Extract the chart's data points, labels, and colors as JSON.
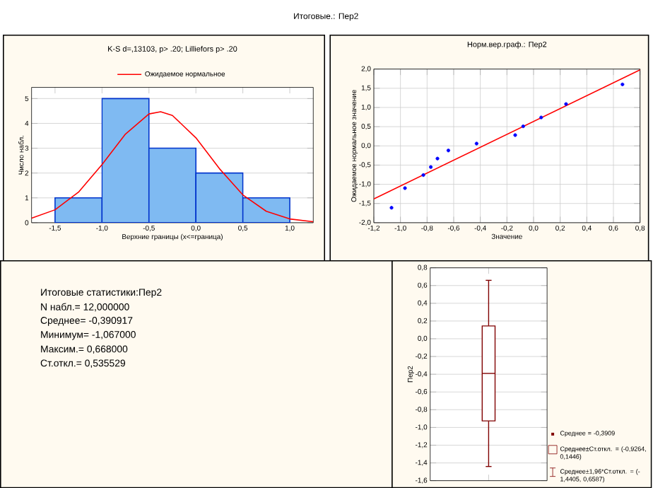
{
  "chart_data": [
    {
      "type": "histogram",
      "title": "Итоговые.: Пер2",
      "subtitle": "K-S d=,13103, p> .20; Lilliefors p> .20",
      "xlabel": "Верхние границы (x<=граница)",
      "ylabel": "Число набл.",
      "series": [
        {
          "type": "histogram",
          "bins": [
            -1.5,
            -1.0,
            -0.5,
            0.0,
            0.5,
            1.0
          ],
          "values": [
            1,
            5,
            3,
            2,
            1
          ],
          "color": "#7fbaf2"
        },
        {
          "type": "line",
          "name": "Ожидаемое нормальное",
          "color": "#ff0000",
          "x": [
            -1.75,
            -1.5,
            -1.25,
            -1.0,
            -0.75,
            -0.5,
            -0.375,
            -0.25,
            0.0,
            0.25,
            0.5,
            0.75,
            1.0,
            1.25
          ],
          "values": [
            0.18,
            0.52,
            1.23,
            2.34,
            3.57,
            4.38,
            4.47,
            4.32,
            3.42,
            2.18,
            1.12,
            0.46,
            0.15,
            0.04
          ]
        }
      ],
      "xlim": [
        -1.75,
        1.25
      ],
      "ylim": [
        0,
        5.45
      ],
      "xticks": [
        {
          "value": -1.5,
          "label": "-1,5"
        },
        {
          "value": -1.0,
          "label": "-1,0"
        },
        {
          "value": -0.5,
          "label": "-0,5"
        },
        {
          "value": 0.0,
          "label": "0,0"
        },
        {
          "value": 0.5,
          "label": "0,5"
        },
        {
          "value": 1.0,
          "label": "1,0"
        }
      ],
      "yticks": [
        0,
        1,
        2,
        3,
        4,
        5
      ],
      "grid": "y",
      "legend": "top"
    },
    {
      "type": "scatter",
      "title": "Норм.вер.граф.: Пер2",
      "xlabel": "Значение",
      "ylabel": "Ожидаемое нормальное значение",
      "series": [
        {
          "type": "scatter",
          "marker": "circle",
          "color": "#0000ff",
          "x": [
            -1.067,
            -0.966,
            -0.828,
            -0.772,
            -0.722,
            -0.64,
            -0.428,
            -0.138,
            -0.078,
            0.057,
            0.244,
            0.668
          ],
          "values": [
            -1.61,
            -1.1,
            -0.76,
            -0.55,
            -0.33,
            -0.12,
            0.06,
            0.28,
            0.51,
            0.74,
            1.09,
            1.6
          ]
        },
        {
          "type": "line",
          "marker": "none",
          "color": "#ff0000",
          "x": [
            -1.2,
            0.8
          ],
          "values": [
            -1.38,
            1.98
          ]
        }
      ],
      "xlim": [
        -1.2,
        0.8
      ],
      "ylim": [
        -2.0,
        2.0
      ],
      "xticks": [
        {
          "value": -1.2,
          "label": "-1,2"
        },
        {
          "value": -1.0,
          "label": "-1,0"
        },
        {
          "value": -0.8,
          "label": "-0,8"
        },
        {
          "value": -0.6,
          "label": "-0,6"
        },
        {
          "value": -0.4,
          "label": "-0,4"
        },
        {
          "value": -0.2,
          "label": "-0,2"
        },
        {
          "value": 0.0,
          "label": "0,0"
        },
        {
          "value": 0.2,
          "label": "0,2"
        },
        {
          "value": 0.4,
          "label": "0,4"
        },
        {
          "value": 0.6,
          "label": "0,6"
        },
        {
          "value": 0.8,
          "label": "0,8"
        }
      ],
      "yticks": [
        {
          "value": -2.0,
          "label": "-2,0"
        },
        {
          "value": -1.5,
          "label": "-1,5"
        },
        {
          "value": -1.0,
          "label": "-1,0"
        },
        {
          "value": -0.5,
          "label": "-0,5"
        },
        {
          "value": 0.0,
          "label": "0,0"
        },
        {
          "value": 0.5,
          "label": "0,5"
        },
        {
          "value": 1.0,
          "label": "1,0"
        },
        {
          "value": 1.5,
          "label": "1,5"
        },
        {
          "value": 2.0,
          "label": "2,0"
        }
      ],
      "grid": true
    },
    {
      "type": "other",
      "title": "Итоговые статистики:Пер2",
      "annotations": [
        "N набл.= 12,000000",
        "Среднее= -0,390917",
        "Минимум= -1,067000",
        "Максим.= 0,668000",
        "Ст.откл.= 0,535529"
      ]
    },
    {
      "type": "box",
      "ylabel": "Пер2",
      "categories": [
        null
      ],
      "color": "#800000",
      "boxes": [
        {
          "low": -1.4405,
          "q1": -0.9264,
          "median": -0.3909,
          "q3": 0.1446,
          "high": 0.6587
        }
      ],
      "ylim": [
        -1.6,
        0.8
      ],
      "yticks": [
        {
          "value": -1.6,
          "label": "-1,6"
        },
        {
          "value": -1.4,
          "label": "-1,4"
        },
        {
          "value": -1.2,
          "label": "-1,2"
        },
        {
          "value": -1.0,
          "label": "-1,0"
        },
        {
          "value": -0.8,
          "label": "-0,8"
        },
        {
          "value": -0.6,
          "label": "-0,6"
        },
        {
          "value": -0.4,
          "label": "-0,4"
        },
        {
          "value": -0.2,
          "label": "-0,2"
        },
        {
          "value": 0.0,
          "label": "0,0"
        },
        {
          "value": 0.2,
          "label": "0,2"
        },
        {
          "value": 0.4,
          "label": "0,4"
        },
        {
          "value": 0.6,
          "label": "0,6"
        },
        {
          "value": 0.8,
          "label": "0,8"
        }
      ],
      "grid": "y",
      "annotations": [
        "Среднее = -0,3909",
        "Среднее±Ст.откл. = (-0,9264, 0,1446)",
        "Среднее±1,96*Ст.откл. = (-1,4405, 0,6587)"
      ]
    }
  ]
}
